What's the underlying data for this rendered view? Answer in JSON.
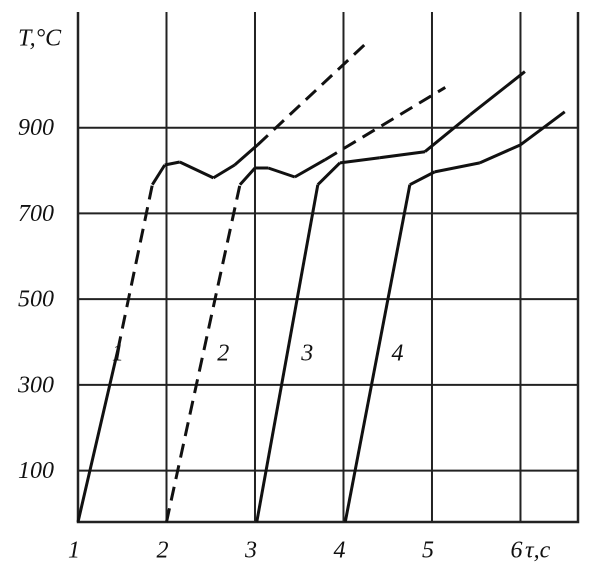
{
  "chart_data": {
    "type": "line",
    "ylabel": "T,°C",
    "xlabel": "τ,c",
    "xlim": [
      1,
      6.65
    ],
    "ylim": [
      -20,
      1170
    ],
    "xticks": [
      1,
      2,
      3,
      4,
      5,
      6
    ],
    "yticks": [
      100,
      300,
      500,
      700,
      900
    ],
    "grid": true,
    "series": [
      {
        "name": "1",
        "color": "#111111",
        "x": [
          1.0,
          1.45,
          1.84,
          1.98,
          2.15,
          2.53,
          2.77,
          3.03,
          4.24
        ],
        "values": [
          -20,
          381,
          767,
          813,
          820,
          783,
          813,
          860,
          1094
        ],
        "dashed": [
          false,
          true,
          false,
          false,
          false,
          false,
          false,
          true
        ]
      },
      {
        "name": "2",
        "color": "#111111",
        "x": [
          2.0,
          2.83,
          3.0,
          3.15,
          3.45,
          3.79,
          5.15
        ],
        "values": [
          -20,
          767,
          806,
          806,
          785,
          825,
          994
        ],
        "dashed": [
          true,
          false,
          false,
          false,
          false,
          true
        ]
      },
      {
        "name": "3",
        "color": "#111111",
        "x": [
          3.02,
          3.71,
          3.96,
          4.41,
          4.92,
          5.43,
          6.05
        ],
        "values": [
          -20,
          767,
          818,
          830,
          844,
          930,
          1031
        ],
        "dashed": [
          false,
          false,
          false,
          false,
          false,
          false
        ]
      },
      {
        "name": "4",
        "color": "#111111",
        "x": [
          4.02,
          4.75,
          5.03,
          5.54,
          6.0,
          6.5
        ],
        "values": [
          -20,
          767,
          797,
          818,
          860,
          937
        ],
        "dashed": [
          false,
          false,
          false,
          false,
          false
        ]
      }
    ]
  }
}
